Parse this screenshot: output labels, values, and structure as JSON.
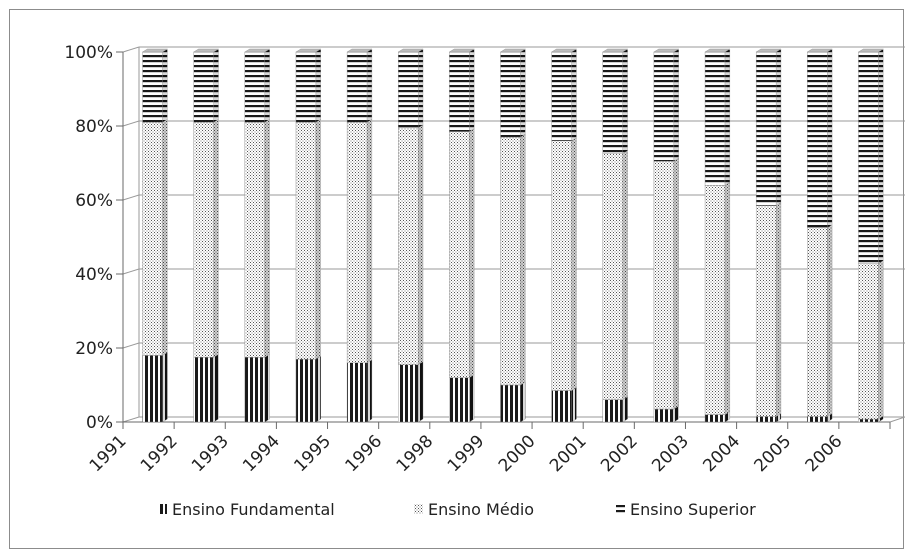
{
  "chart_data": {
    "type": "bar",
    "stacked": "percent",
    "categories": [
      "1991",
      "1992",
      "1993",
      "1994",
      "1995",
      "1996",
      "1998",
      "1999",
      "2000",
      "2001",
      "2002",
      "2003",
      "2004",
      "2005",
      "2006"
    ],
    "series": [
      {
        "name": "Ensino Fundamental",
        "pattern": "vertical-stripes",
        "values": [
          18,
          17.5,
          17.5,
          17,
          16,
          15.5,
          12,
          10,
          8.5,
          6,
          3.5,
          2,
          1.5,
          1.5,
          0.8
        ]
      },
      {
        "name": "Ensino Médio",
        "pattern": "dots",
        "values": [
          63,
          63.5,
          63.5,
          64,
          65,
          64,
          66.5,
          67,
          67.5,
          66.5,
          67,
          62,
          57,
          51,
          42
        ]
      },
      {
        "name": "Ensino Superior",
        "pattern": "horizontal-stripes",
        "values": [
          19,
          19,
          19,
          19,
          19,
          20.5,
          21.5,
          23,
          24,
          27.5,
          29.5,
          36,
          41.5,
          47.5,
          57.2
        ]
      }
    ],
    "y_ticks": [
      "0%",
      "20%",
      "40%",
      "60%",
      "80%",
      "100%"
    ],
    "ylim": [
      0,
      100
    ],
    "legend_position": "bottom",
    "grid": true,
    "three_d": true
  }
}
